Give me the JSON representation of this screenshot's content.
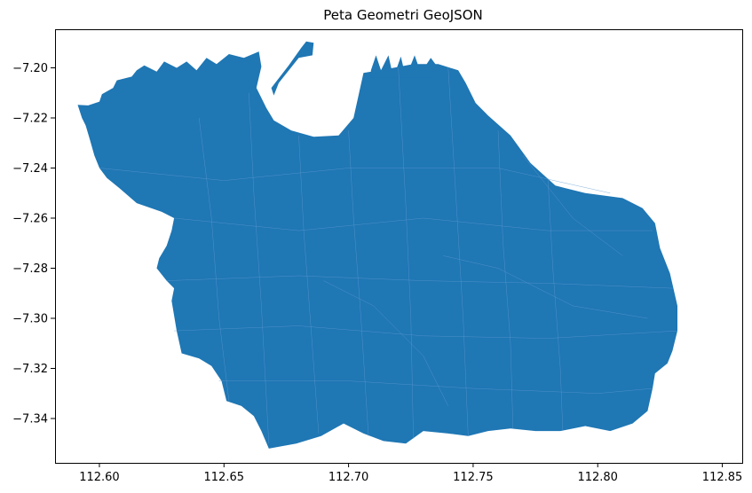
{
  "map": {
    "title": "Peta Geometri GeoJSON",
    "fill_color": "#1f77b4",
    "x_ticks": [
      112.6,
      112.65,
      112.7,
      112.75,
      112.8,
      112.85
    ],
    "x_tick_labels": [
      "112.60",
      "112.65",
      "112.70",
      "112.75",
      "112.80",
      "112.85"
    ],
    "y_ticks": [
      -7.2,
      -7.22,
      -7.24,
      -7.26,
      -7.28,
      -7.3,
      -7.32,
      -7.34
    ],
    "y_tick_labels": [
      "−7.20",
      "−7.22",
      "−7.24",
      "−7.26",
      "−7.28",
      "−7.30",
      "−7.32",
      "−7.34"
    ],
    "xlim": [
      112.5822,
      112.858
    ],
    "ylim": [
      -7.3577,
      -7.1846
    ],
    "outline_lonlat": [
      [
        112.5913,
        -7.2148
      ],
      [
        112.5955,
        -7.215
      ],
      [
        112.6,
        -7.2135
      ],
      [
        112.601,
        -7.2105
      ],
      [
        112.6055,
        -7.208
      ],
      [
        112.607,
        -7.205
      ],
      [
        112.613,
        -7.2035
      ],
      [
        112.615,
        -7.201
      ],
      [
        112.618,
        -7.199
      ],
      [
        112.623,
        -7.2015
      ],
      [
        112.626,
        -7.1975
      ],
      [
        112.631,
        -7.2
      ],
      [
        112.635,
        -7.1975
      ],
      [
        112.639,
        -7.201
      ],
      [
        112.643,
        -7.196
      ],
      [
        112.647,
        -7.1985
      ],
      [
        112.652,
        -7.1945
      ],
      [
        112.658,
        -7.196
      ],
      [
        112.664,
        -7.1935
      ],
      [
        112.665,
        -7.1995
      ],
      [
        112.663,
        -7.208
      ],
      [
        112.667,
        -7.216
      ],
      [
        112.67,
        -7.221
      ],
      [
        112.677,
        -7.225
      ],
      [
        112.686,
        -7.2275
      ],
      [
        112.696,
        -7.227
      ],
      [
        112.702,
        -7.22
      ],
      [
        112.704,
        -7.211
      ],
      [
        112.706,
        -7.202
      ],
      [
        112.718,
        -7.2
      ],
      [
        112.726,
        -7.1985
      ],
      [
        112.736,
        -7.1985
      ],
      [
        112.744,
        -7.201
      ],
      [
        112.747,
        -7.206
      ],
      [
        112.751,
        -7.214
      ],
      [
        112.756,
        -7.219
      ],
      [
        112.765,
        -7.227
      ],
      [
        112.773,
        -7.238
      ],
      [
        112.783,
        -7.247
      ],
      [
        112.795,
        -7.25
      ],
      [
        112.81,
        -7.252
      ],
      [
        112.818,
        -7.256
      ],
      [
        112.823,
        -7.262
      ],
      [
        112.825,
        -7.272
      ],
      [
        112.829,
        -7.282
      ],
      [
        112.832,
        -7.295
      ],
      [
        112.832,
        -7.305
      ],
      [
        112.83,
        -7.313
      ],
      [
        112.828,
        -7.318
      ],
      [
        112.823,
        -7.322
      ],
      [
        112.822,
        -7.328
      ],
      [
        112.82,
        -7.337
      ],
      [
        112.814,
        -7.342
      ],
      [
        112.805,
        -7.345
      ],
      [
        112.795,
        -7.343
      ],
      [
        112.785,
        -7.345
      ],
      [
        112.775,
        -7.345
      ],
      [
        112.765,
        -7.344
      ],
      [
        112.756,
        -7.345
      ],
      [
        112.748,
        -7.347
      ],
      [
        112.74,
        -7.346
      ],
      [
        112.73,
        -7.345
      ],
      [
        112.723,
        -7.35
      ],
      [
        112.714,
        -7.349
      ],
      [
        112.706,
        -7.346
      ],
      [
        112.698,
        -7.342
      ],
      [
        112.689,
        -7.347
      ],
      [
        112.679,
        -7.35
      ],
      [
        112.668,
        -7.352
      ],
      [
        112.665,
        -7.345
      ],
      [
        112.662,
        -7.339
      ],
      [
        112.657,
        -7.335
      ],
      [
        112.651,
        -7.333
      ],
      [
        112.649,
        -7.325
      ],
      [
        112.645,
        -7.319
      ],
      [
        112.64,
        -7.316
      ],
      [
        112.633,
        -7.314
      ],
      [
        112.631,
        -7.305
      ],
      [
        112.629,
        -7.293
      ],
      [
        112.63,
        -7.288
      ],
      [
        112.627,
        -7.285
      ],
      [
        112.623,
        -7.28
      ],
      [
        112.624,
        -7.276
      ],
      [
        112.627,
        -7.271
      ],
      [
        112.629,
        -7.265
      ],
      [
        112.63,
        -7.26
      ],
      [
        112.625,
        -7.2575
      ],
      [
        112.615,
        -7.254
      ],
      [
        112.608,
        -7.248
      ],
      [
        112.603,
        -7.244
      ],
      [
        112.6,
        -7.24
      ],
      [
        112.598,
        -7.235
      ],
      [
        112.596,
        -7.228
      ],
      [
        112.5945,
        -7.223
      ],
      [
        112.593,
        -7.22
      ]
    ],
    "pier_lonlat": [
      [
        112.709,
        -7.201
      ],
      [
        112.711,
        -7.195
      ],
      [
        112.713,
        -7.201
      ],
      [
        112.716,
        -7.195
      ],
      [
        112.718,
        -7.204
      ],
      [
        112.721,
        -7.1955
      ],
      [
        112.723,
        -7.204
      ],
      [
        112.7265,
        -7.195
      ],
      [
        112.729,
        -7.202
      ],
      [
        112.733,
        -7.196
      ],
      [
        112.736,
        -7.2
      ],
      [
        112.734,
        -7.204
      ],
      [
        112.709,
        -7.204
      ]
    ],
    "jetty_lonlat": [
      [
        112.669,
        -7.208
      ],
      [
        112.676,
        -7.199
      ],
      [
        112.681,
        -7.192
      ],
      [
        112.683,
        -7.1895
      ],
      [
        112.686,
        -7.19
      ],
      [
        112.6855,
        -7.195
      ],
      [
        112.68,
        -7.196
      ],
      [
        112.672,
        -7.206
      ],
      [
        112.67,
        -7.211
      ]
    ],
    "boundaries_lonlat": [
      [
        [
          112.64,
          -7.22
        ],
        [
          112.645,
          -7.26
        ],
        [
          112.648,
          -7.3
        ],
        [
          112.652,
          -7.333
        ]
      ],
      [
        [
          112.66,
          -7.21
        ],
        [
          112.662,
          -7.25
        ],
        [
          112.665,
          -7.295
        ],
        [
          112.668,
          -7.35
        ]
      ],
      [
        [
          112.68,
          -7.227
        ],
        [
          112.682,
          -7.265
        ],
        [
          112.685,
          -7.305
        ],
        [
          112.688,
          -7.346
        ]
      ],
      [
        [
          112.7,
          -7.225
        ],
        [
          112.702,
          -7.26
        ],
        [
          112.705,
          -7.3
        ],
        [
          112.708,
          -7.347
        ]
      ],
      [
        [
          112.72,
          -7.2
        ],
        [
          112.723,
          -7.255
        ],
        [
          112.725,
          -7.3
        ],
        [
          112.726,
          -7.348
        ]
      ],
      [
        [
          112.74,
          -7.2
        ],
        [
          112.743,
          -7.25
        ],
        [
          112.746,
          -7.3
        ],
        [
          112.748,
          -7.347
        ]
      ],
      [
        [
          112.76,
          -7.225
        ],
        [
          112.762,
          -7.27
        ],
        [
          112.765,
          -7.31
        ],
        [
          112.766,
          -7.344
        ]
      ],
      [
        [
          112.78,
          -7.244
        ],
        [
          112.782,
          -7.28
        ],
        [
          112.785,
          -7.32
        ],
        [
          112.786,
          -7.345
        ]
      ],
      [
        [
          112.6,
          -7.24
        ],
        [
          112.65,
          -7.245
        ],
        [
          112.7,
          -7.24
        ],
        [
          112.76,
          -7.24
        ],
        [
          112.805,
          -7.25
        ]
      ],
      [
        [
          112.63,
          -7.26
        ],
        [
          112.68,
          -7.265
        ],
        [
          112.73,
          -7.26
        ],
        [
          112.78,
          -7.265
        ],
        [
          112.822,
          -7.265
        ]
      ],
      [
        [
          112.627,
          -7.285
        ],
        [
          112.68,
          -7.283
        ],
        [
          112.73,
          -7.285
        ],
        [
          112.78,
          -7.286
        ],
        [
          112.83,
          -7.288
        ]
      ],
      [
        [
          112.63,
          -7.305
        ],
        [
          112.68,
          -7.303
        ],
        [
          112.73,
          -7.307
        ],
        [
          112.78,
          -7.308
        ],
        [
          112.832,
          -7.305
        ]
      ],
      [
        [
          112.648,
          -7.325
        ],
        [
          112.7,
          -7.325
        ],
        [
          112.75,
          -7.328
        ],
        [
          112.8,
          -7.33
        ],
        [
          112.822,
          -7.328
        ]
      ],
      [
        [
          112.738,
          -7.275
        ],
        [
          112.76,
          -7.28
        ],
        [
          112.79,
          -7.295
        ],
        [
          112.82,
          -7.3
        ]
      ],
      [
        [
          112.69,
          -7.285
        ],
        [
          112.71,
          -7.295
        ],
        [
          112.73,
          -7.315
        ],
        [
          112.74,
          -7.335
        ]
      ],
      [
        [
          112.77,
          -7.235
        ],
        [
          112.79,
          -7.26
        ],
        [
          112.81,
          -7.275
        ]
      ]
    ]
  }
}
